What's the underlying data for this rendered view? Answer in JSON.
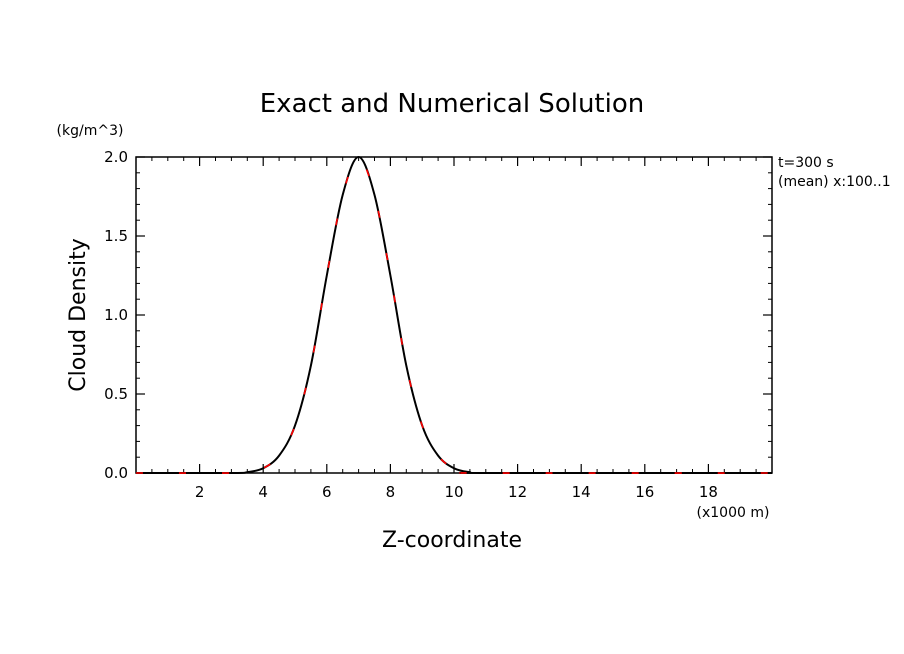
{
  "chart_data": {
    "type": "line",
    "title": "Exact and Numerical Solution",
    "xlabel": "Z-coordinate",
    "ylabel": "Cloud Density",
    "xunit": "(x1000 m)",
    "yunit": "(kg/m^3)",
    "annotations": [
      "t=300 s",
      "(mean) x:100..1"
    ],
    "xlim": [
      0,
      20
    ],
    "ylim": [
      0,
      2.0
    ],
    "xticks": [
      "2",
      "4",
      "6",
      "8",
      "10",
      "12",
      "14",
      "16",
      "18"
    ],
    "yticks": [
      "0.0",
      "0.5",
      "1.0",
      "1.5",
      "2.0"
    ],
    "grid": false,
    "series": [
      {
        "style": "solid",
        "color": "#000000",
        "x": [
          0,
          3,
          3.5,
          4,
          4.5,
          5,
          5.5,
          6,
          6.5,
          7,
          7.5,
          8,
          8.5,
          9,
          9.5,
          10,
          10.5,
          11,
          20
        ],
        "y": [
          0,
          0,
          0.005,
          0.03,
          0.11,
          0.3,
          0.68,
          1.25,
          1.76,
          2.0,
          1.76,
          1.25,
          0.68,
          0.3,
          0.11,
          0.03,
          0.005,
          0,
          0
        ]
      },
      {
        "style": "dashed",
        "color": "#ff0000",
        "x": [
          0,
          3,
          3.5,
          4,
          4.5,
          5,
          5.5,
          6,
          6.5,
          7,
          7.5,
          8,
          8.5,
          9,
          9.5,
          10,
          10.5,
          11,
          20
        ],
        "y": [
          0,
          0,
          0.005,
          0.03,
          0.11,
          0.3,
          0.68,
          1.25,
          1.76,
          1.99,
          1.76,
          1.25,
          0.68,
          0.3,
          0.11,
          0.03,
          0.005,
          0,
          0
        ]
      }
    ]
  }
}
